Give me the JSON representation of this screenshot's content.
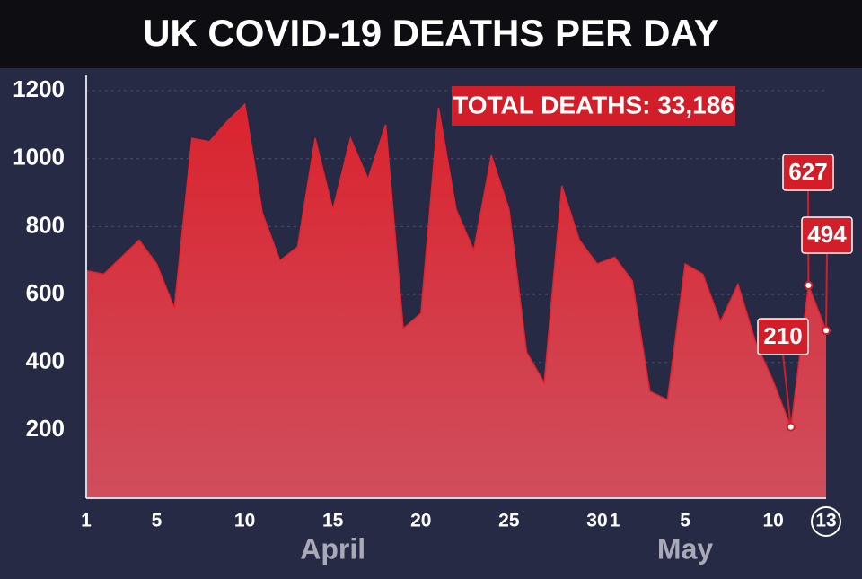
{
  "chart_data": {
    "type": "area",
    "title": "UK COVID-19 DEATHS PER DAY",
    "annotation": "TOTAL DEATHS: 33,186",
    "months": [
      "April",
      "May"
    ],
    "categories": [
      "1",
      null,
      null,
      null,
      "5",
      null,
      null,
      null,
      null,
      "10",
      null,
      null,
      null,
      null,
      "15",
      null,
      null,
      null,
      null,
      "20",
      null,
      null,
      null,
      null,
      "25",
      null,
      null,
      null,
      null,
      "30",
      "1",
      null,
      null,
      null,
      "5",
      null,
      null,
      null,
      null,
      "10",
      null,
      null,
      "13"
    ],
    "values": [
      670,
      660,
      710,
      760,
      690,
      560,
      1060,
      1050,
      1110,
      1160,
      840,
      700,
      740,
      1060,
      850,
      1060,
      940,
      1100,
      500,
      545,
      1150,
      850,
      730,
      1010,
      850,
      430,
      340,
      920,
      760,
      690,
      710,
      640,
      315,
      290,
      690,
      660,
      520,
      630,
      460,
      345,
      210,
      627,
      494
    ],
    "color": "#e3232d",
    "ylim": [
      0,
      1240
    ],
    "yticks": [
      200,
      400,
      600,
      800,
      1000,
      1200
    ],
    "grid": true,
    "labeled_points": [
      40,
      41,
      42
    ]
  }
}
